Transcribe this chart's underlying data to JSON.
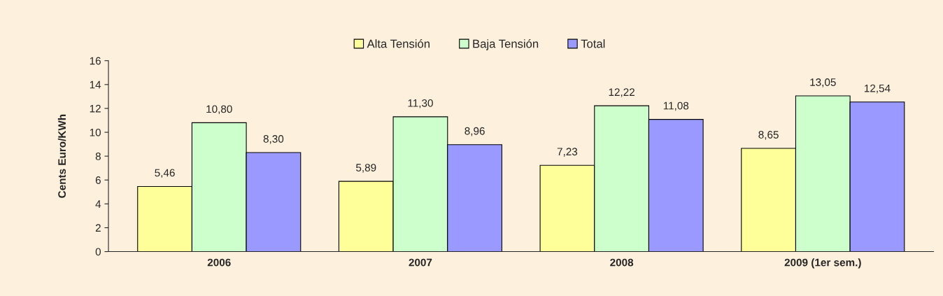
{
  "chart_data": {
    "type": "bar",
    "ylabel": "Cents Euro/KWh",
    "categories": [
      "2006",
      "2007",
      "2008",
      "2009 (1er sem.)"
    ],
    "series": [
      {
        "name": "Alta Tensión",
        "color": "#ffff99",
        "values": [
          5.46,
          5.89,
          7.23,
          8.65
        ],
        "value_labels": [
          "5,46",
          "5,89",
          "7,23",
          "8,65"
        ]
      },
      {
        "name": "Baja Tensión",
        "color": "#ccffcc",
        "values": [
          10.8,
          11.3,
          12.22,
          13.05
        ],
        "value_labels": [
          "10,80",
          "11,30",
          "12,22",
          "13,05"
        ]
      },
      {
        "name": "Total",
        "color": "#9999ff",
        "values": [
          8.3,
          8.96,
          11.08,
          12.54
        ],
        "value_labels": [
          "8,30",
          "8,96",
          "11,08",
          "12,54"
        ]
      }
    ],
    "ylim": [
      0,
      16
    ],
    "yticks": [
      0,
      2,
      4,
      6,
      8,
      10,
      12,
      14,
      16
    ],
    "grid": false,
    "legend": "top"
  }
}
